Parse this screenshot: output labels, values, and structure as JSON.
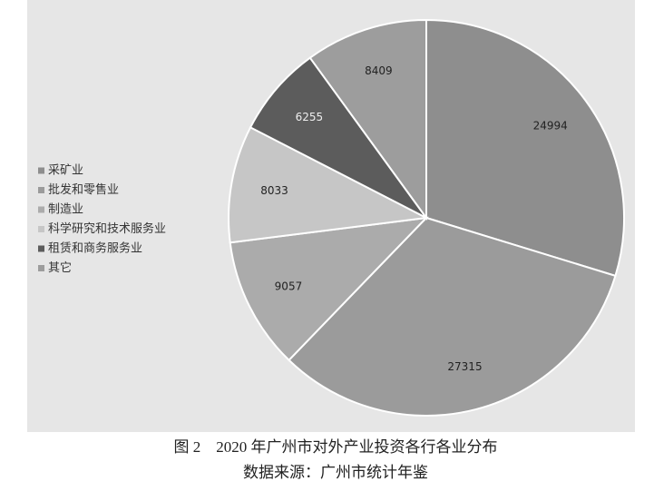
{
  "chart_data": {
    "type": "pie",
    "title": "图 2　2020 年广州市对外产业投资各行各业分布",
    "subtitle": "数据来源：广州市统计年鉴",
    "categories": [
      "采矿业",
      "批发和零售业",
      "制造业",
      "科学研究和技术服务业",
      "租赁和商务服务业",
      "其它"
    ],
    "values": [
      24994,
      27315,
      9057,
      8033,
      6255,
      8409
    ],
    "colors": [
      "#8e8e8e",
      "#9b9b9b",
      "#ababab",
      "#c6c6c6",
      "#5c5c5c",
      "#9d9d9d"
    ],
    "legend": "left"
  }
}
